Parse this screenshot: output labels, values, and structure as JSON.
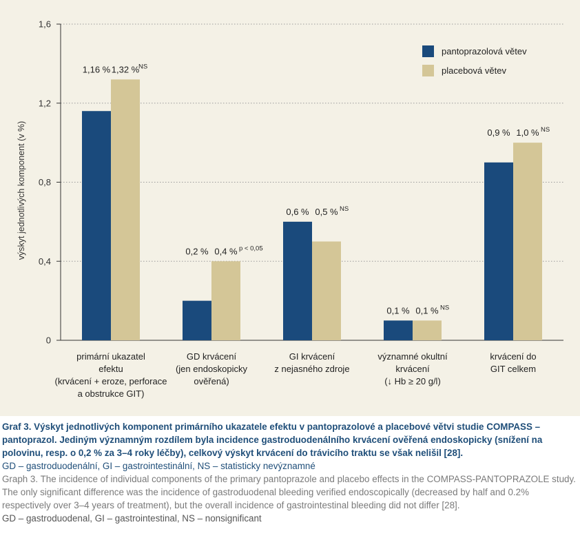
{
  "chart_data": {
    "type": "bar",
    "ylabel": "výskyt jednotlivých komponent (v %)",
    "ylim": [
      0,
      1.6
    ],
    "yticks": [
      0,
      0.4,
      0.8,
      1.2,
      1.6
    ],
    "ytick_labels": [
      "0",
      "0,4",
      "0,8",
      "1,2",
      "1,6"
    ],
    "grid": "dotted horizontal",
    "legend_position": "top-right",
    "categories": [
      [
        "primární ukazatel",
        "efektu",
        "(krvácení + eroze, perforace",
        "a obstrukce GIT)"
      ],
      [
        "GD krvácení",
        "(jen endoskopicky",
        "ověřená)"
      ],
      [
        "GI krvácení",
        "z nejasného zdroje"
      ],
      [
        "významné okultní",
        "krvácení",
        "(↓ Hb ≥ 20 g/l)"
      ],
      [
        "krvácení do",
        "GIT celkem"
      ]
    ],
    "series": [
      {
        "name": "pantoprazolová větev",
        "color": "#1a4a7c",
        "values": [
          1.16,
          0.2,
          0.6,
          0.1,
          0.9
        ],
        "labels": [
          "1,16 %",
          "0,2 %",
          "0,6 %",
          "0,1 %",
          "0,9 %"
        ]
      },
      {
        "name": "placebová větev",
        "color": "#d4c697",
        "values": [
          1.32,
          0.4,
          0.5,
          0.1,
          1.0
        ],
        "labels": [
          "1,32 %",
          "0,4 %",
          "0,5 %",
          "0,1 %",
          "1,0 %"
        ]
      }
    ],
    "annotations": [
      "NS",
      "p < 0,05",
      "NS",
      "NS",
      "NS"
    ]
  },
  "caption": {
    "title_cz": "Graf 3. Výskyt jednotlivých komponent primárního ukazatele efektu v pantoprazolové a placebové větvi studie COMPASS – pantoprazol. Jediným významným rozdílem byla incidence gastroduodenálního krvácení ověřená endoskopicky (snížení na polovinu, resp. o 0,2 % za 3–4 roky léčby), celkový výskyt krvácení do trávicího traktu se však nelišil [28].",
    "abbr_cz": "GD – gastroduodenální, GI – gastrointestinální, NS – statisticky nevýznamné",
    "text_en": "Graph 3. The incidence of individual components of the primary pantoprazole and placebo effects in the COMPASS-PANTOPRAZOLE study. The only significant difference was the incidence of gastroduodenal bleeding verified endoscopically (decreased by half and 0.2% respectively over 3–4 years of treatment), but the overall incidence of gastrointestinal bleeding did not differ [28].",
    "abbr_en": "GD – gastroduodenal, GI – gastrointestinal, NS – nonsignificant"
  }
}
